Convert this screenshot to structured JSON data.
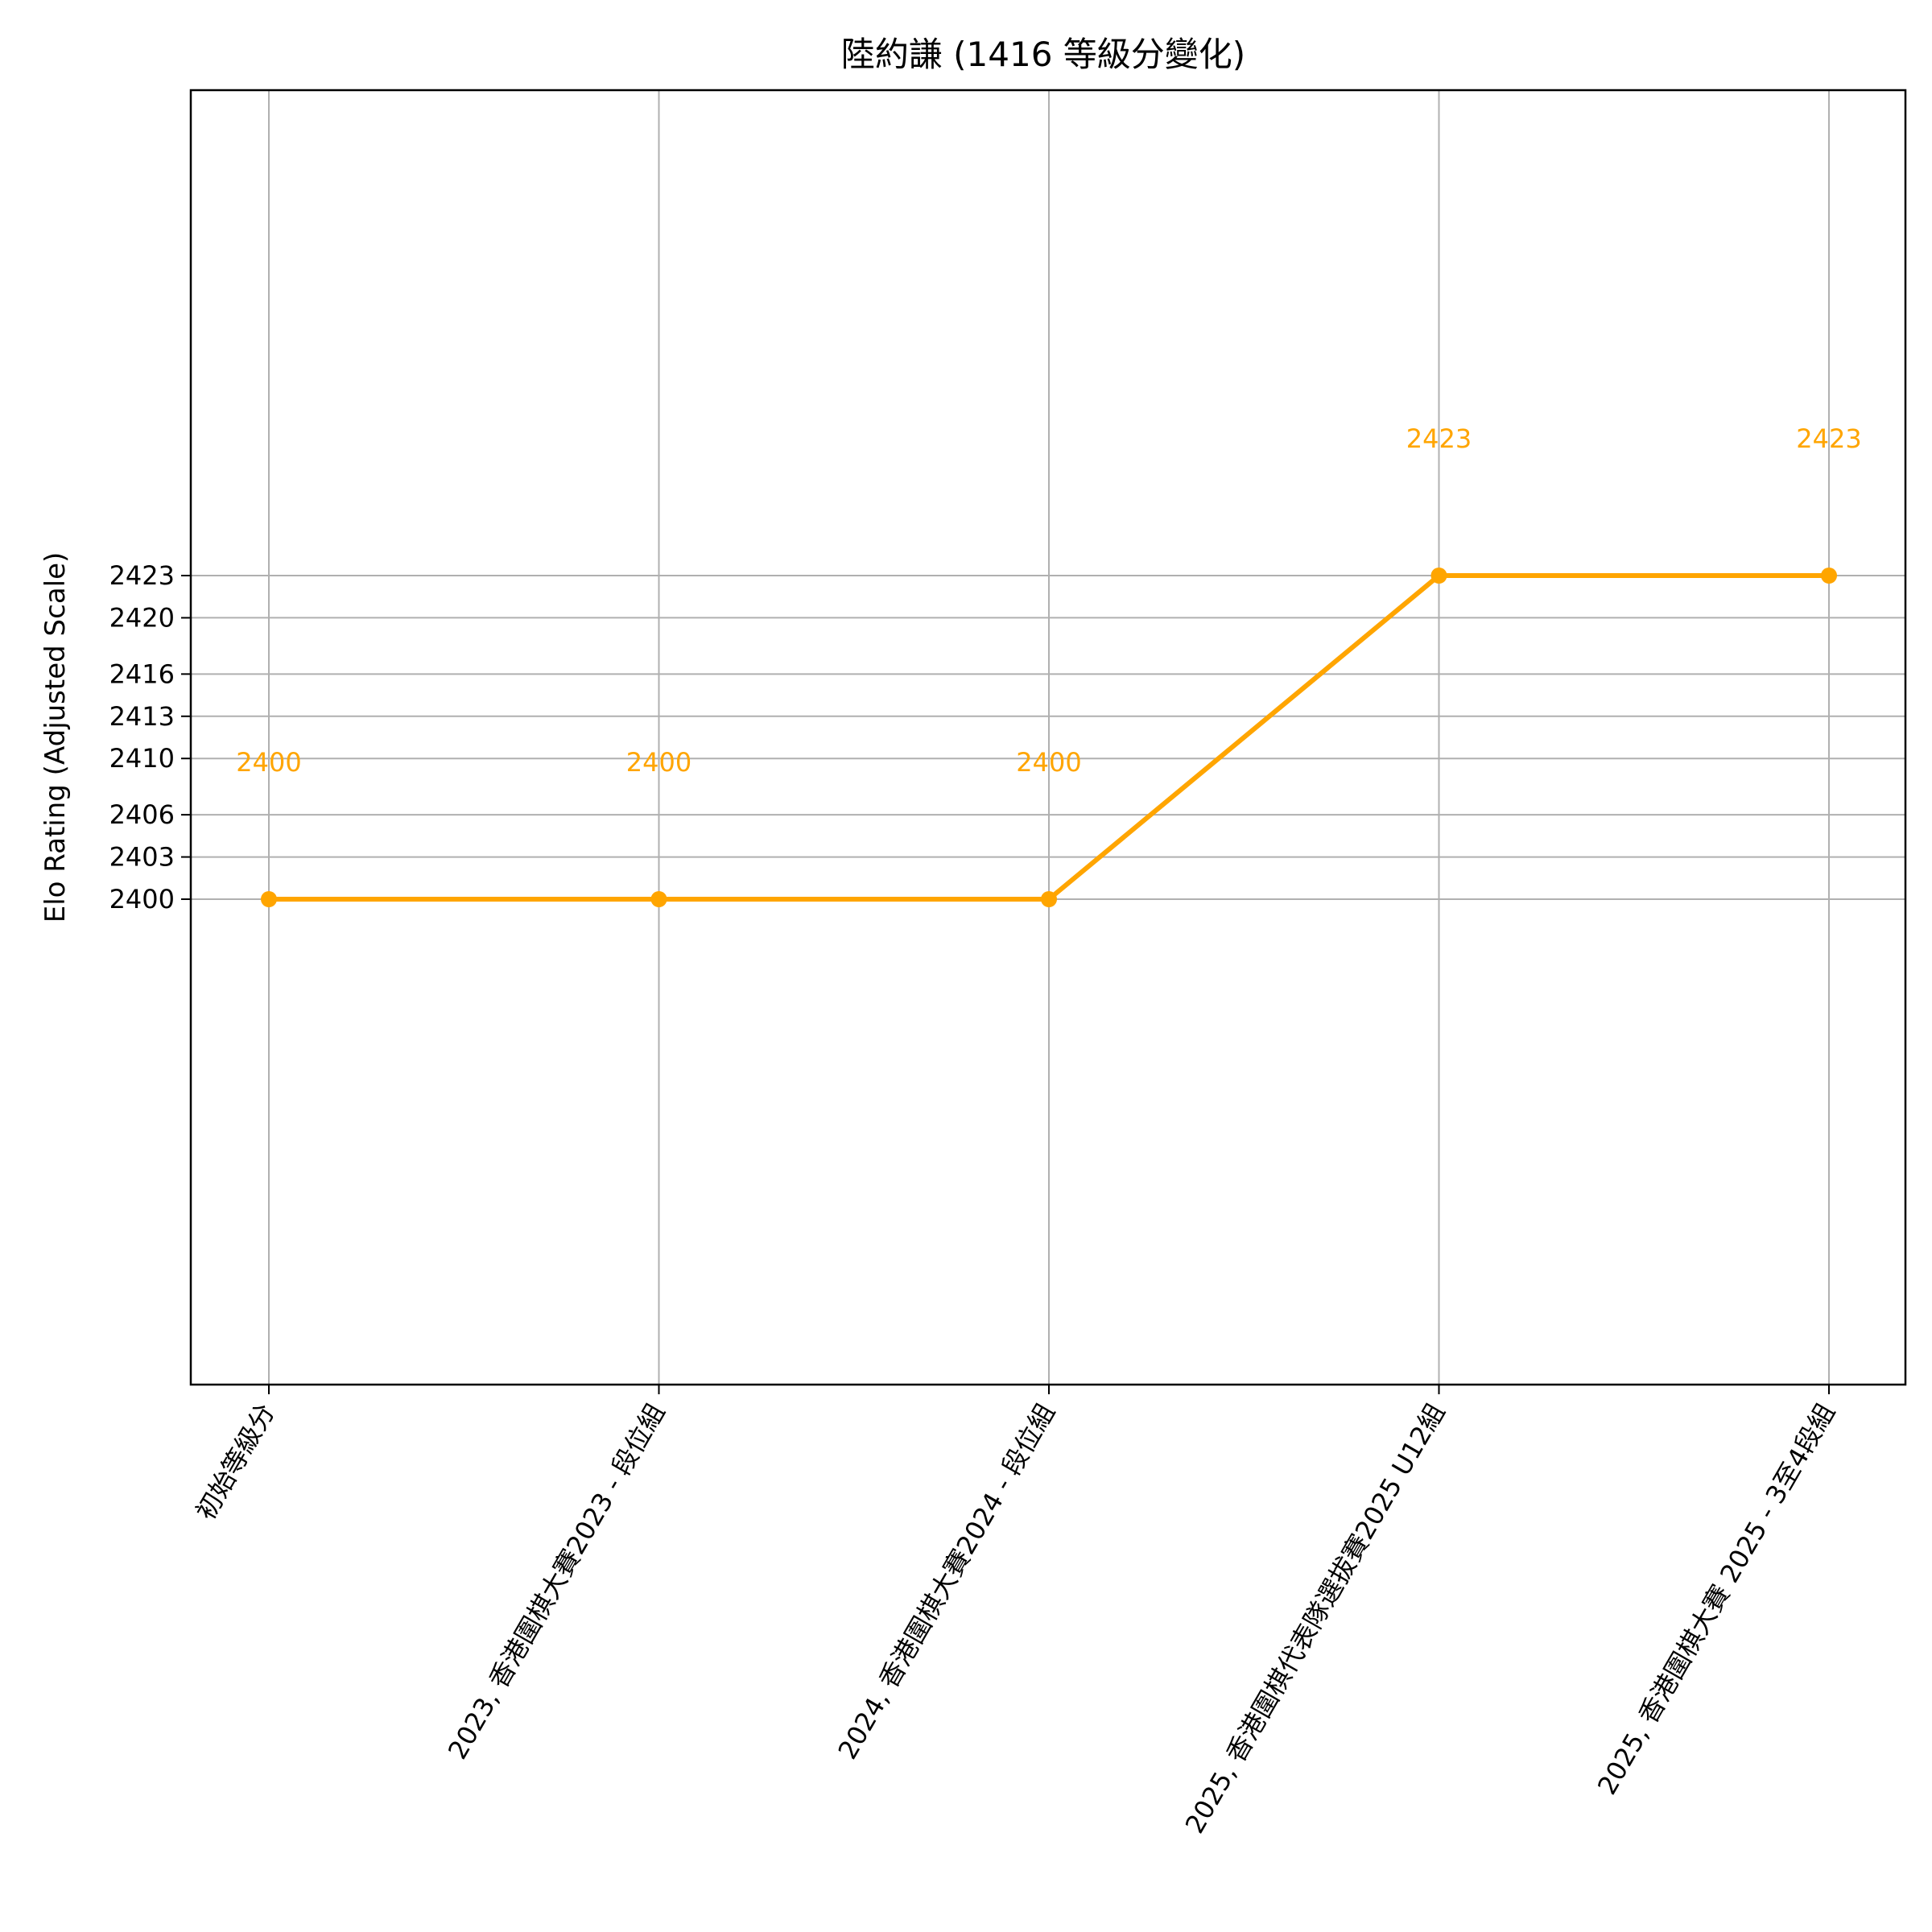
{
  "chart_data": {
    "type": "line",
    "title": "陸約謙 (1416 等級分變化)",
    "xlabel": "",
    "ylabel": "Elo Rating (Adjusted Scale)",
    "categories": [
      "初始等級分",
      "2023, 香港圍棋大賽2023 - 段位組",
      "2024, 香港圍棋大賽2024 - 段位組",
      "2025, 香港圍棋代表隊選拔賽2025 U12組",
      "2025, 香港圍棋大賽 2025 - 3至4段組"
    ],
    "series": [
      {
        "values": [
          2400,
          2400,
          2400,
          2423,
          2423
        ],
        "color": "#FFA500",
        "marker": "circle"
      }
    ],
    "data_labels": [
      "2400",
      "2400",
      "2400",
      "2423",
      "2423"
    ],
    "y_ticks": [
      2400,
      2403,
      2406,
      2410,
      2413,
      2416,
      2420,
      2423
    ],
    "y_tick_labels": [
      "2400",
      "2403",
      "2406",
      "2410",
      "2413",
      "2416",
      "2420",
      "2423"
    ],
    "ylim": [
      2365.5,
      2457.5
    ],
    "grid": true,
    "colors": {
      "line": "#FFA500",
      "grid": "#b0b0b0",
      "axis": "#000000"
    }
  }
}
